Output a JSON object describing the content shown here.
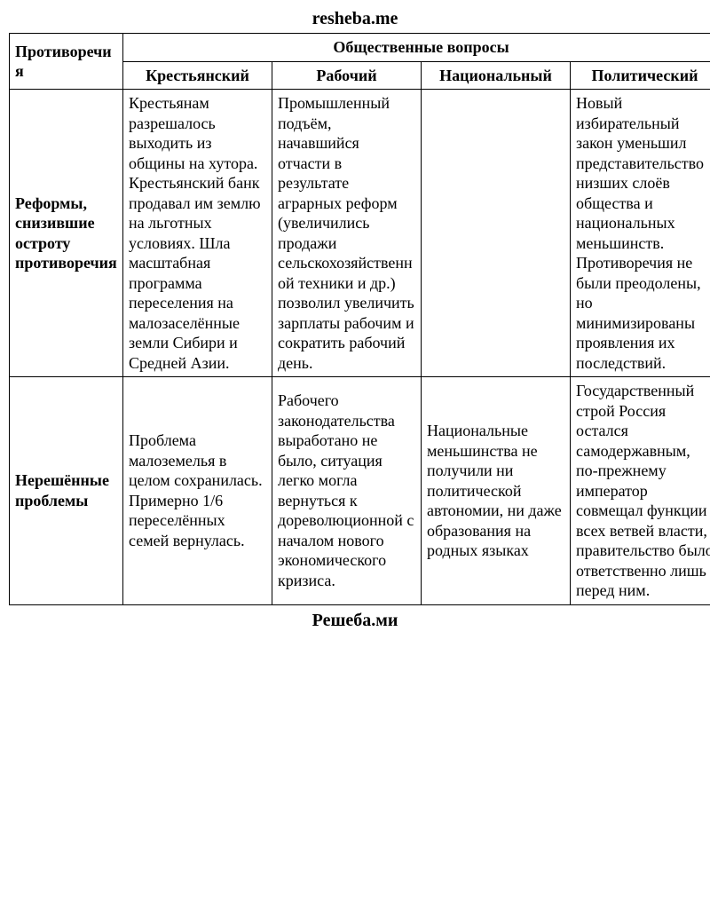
{
  "watermark_top": "resheba.me",
  "footer": "Решеба.ми",
  "table": {
    "header_row1_label": "Противоречия",
    "header_row1_group": "Общественные вопросы",
    "columns": {
      "peasant": "Крестьянский",
      "worker": "Рабочий",
      "national": "Национальный",
      "political": "Политический"
    },
    "rows": {
      "reforms": {
        "label": "Реформы, снизившие остроту противоречия",
        "peasant": "Крестьянам разрешалось выходить из общины на хутора. Крестьянский банк продавал им землю на льготных условиях. Шла масштабная программа переселения на малозаселённые земли Сибири и Средней Азии.",
        "worker": "Промышленный подъём, начавшийся отчасти в результате аграрных реформ (увеличились продажи сельскохозяйственной техники и др.) позволил увеличить зарплаты рабочим и сократить рабочий день.",
        "national": "",
        "political": "Новый избирательный закон уменьшил представительство низших слоёв общества и национальных меньшинств. Противоречия не были преодолены, но минимизированы проявления их последствий."
      },
      "unsolved": {
        "label": "Нерешённые проблемы",
        "peasant": "Проблема малоземелья в целом сохранилась. Примерно 1/6 переселённых семей вернулась.",
        "worker": "Рабочего законодательства выработано не было, ситуация легко могла вернуться к дореволюционной с началом нового экономического кризиса.",
        "national": "Национальные меньшинства не получили ни политической автономии, ни даже образования на родных языках",
        "political": "Государственный строй Россия остался самодержавным, по-прежнему император совмещал функции всех ветвей власти, правительство было ответственно лишь перед ним."
      }
    }
  }
}
